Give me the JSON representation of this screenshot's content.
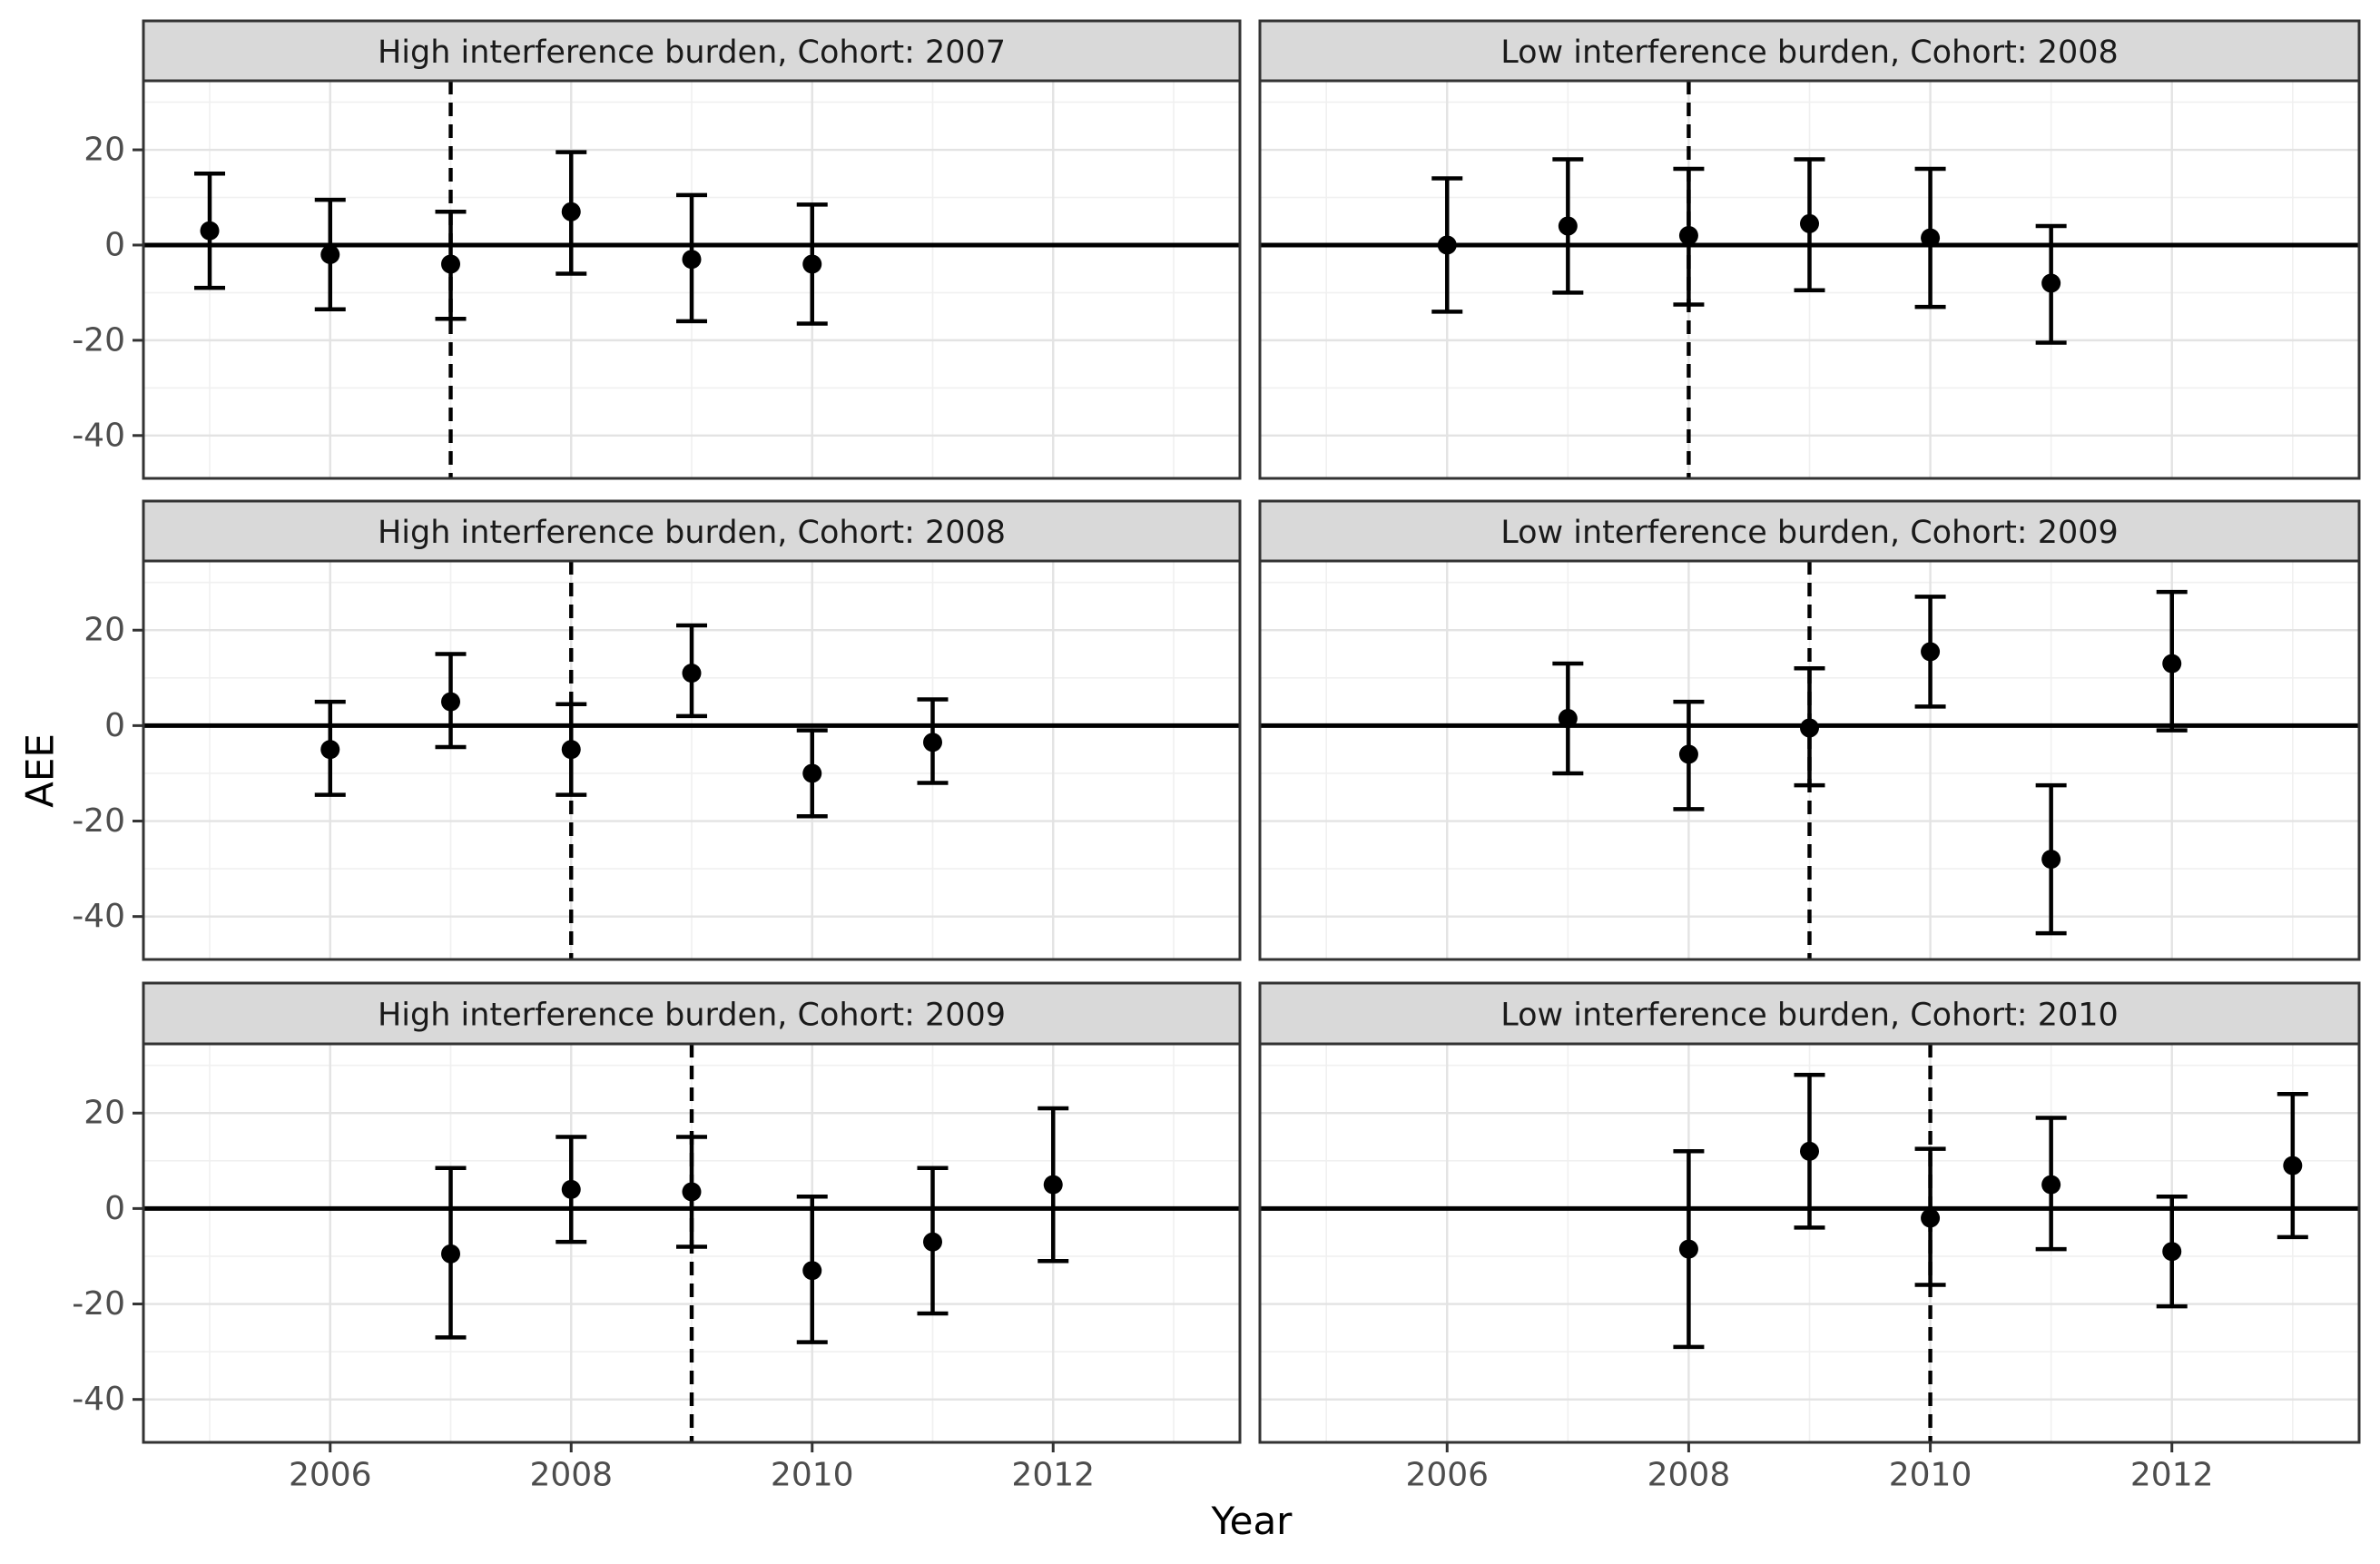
{
  "figure": {
    "x_axis_title": "Year",
    "y_axis_title": "AEE",
    "x_tick_labels": [
      "2006",
      "2008",
      "2010",
      "2012"
    ],
    "y_tick_labels": [
      "20",
      "0",
      "-20",
      "-40"
    ],
    "colors": {
      "background": "#FFFFFF",
      "strip_bg": "#D9D9D9",
      "strip_border": "#333333",
      "strip_text": "#1A1A1A",
      "panel_border": "#333333",
      "grid_major": "#E3E3E3",
      "grid_minor": "#F0F0F0",
      "data": "#000000",
      "tick_mark": "#333333",
      "tick_label": "#4D4D4D",
      "axis_title": "#000000"
    }
  },
  "chart_data": {
    "type": "scatter",
    "subtype": "pointrange-errorbar-facets",
    "xlabel": "Year",
    "ylabel": "AEE",
    "x_ticks": [
      2006,
      2008,
      2010,
      2012
    ],
    "y_ticks": [
      20,
      0,
      -20,
      -40
    ],
    "x_minor": [
      2005,
      2007,
      2009,
      2011,
      2013
    ],
    "y_minor": [
      30,
      10,
      -10,
      -30
    ],
    "xlim": [
      2004.45,
      2013.55
    ],
    "ylim": [
      -49,
      34.5
    ],
    "grid": "major+minor",
    "legend": "none",
    "hline_y": 0,
    "panels": [
      {
        "title": "High interference burden, Cohort: 2007",
        "group": "High interference burden",
        "cohort": 2007,
        "vline_x": 2007,
        "row": 0,
        "col": 0,
        "points": [
          {
            "year": 2005,
            "estimate": 3,
            "ci_low": -9,
            "ci_high": 15
          },
          {
            "year": 2006,
            "estimate": -2,
            "ci_low": -13.5,
            "ci_high": 9.5
          },
          {
            "year": 2007,
            "estimate": -4,
            "ci_low": -15.5,
            "ci_high": 7
          },
          {
            "year": 2008,
            "estimate": 7,
            "ci_low": -6,
            "ci_high": 19.5
          },
          {
            "year": 2009,
            "estimate": -3,
            "ci_low": -16,
            "ci_high": 10.5
          },
          {
            "year": 2010,
            "estimate": -4,
            "ci_low": -16.5,
            "ci_high": 8.5
          }
        ]
      },
      {
        "title": "Low interference burden, Cohort: 2008",
        "group": "Low interference burden",
        "cohort": 2008,
        "vline_x": 2008,
        "row": 0,
        "col": 1,
        "points": [
          {
            "year": 2006,
            "estimate": 0,
            "ci_low": -14,
            "ci_high": 14
          },
          {
            "year": 2007,
            "estimate": 4,
            "ci_low": -10,
            "ci_high": 18
          },
          {
            "year": 2008,
            "estimate": 2,
            "ci_low": -12.5,
            "ci_high": 16
          },
          {
            "year": 2009,
            "estimate": 4.5,
            "ci_low": -9.5,
            "ci_high": 18
          },
          {
            "year": 2010,
            "estimate": 1.5,
            "ci_low": -13,
            "ci_high": 16
          },
          {
            "year": 2011,
            "estimate": -8,
            "ci_low": -20.5,
            "ci_high": 4
          }
        ]
      },
      {
        "title": "High interference burden, Cohort: 2008",
        "group": "High interference burden",
        "cohort": 2008,
        "vline_x": 2008,
        "row": 1,
        "col": 0,
        "points": [
          {
            "year": 2006,
            "estimate": -5,
            "ci_low": -14.5,
            "ci_high": 5
          },
          {
            "year": 2007,
            "estimate": 5,
            "ci_low": -4.5,
            "ci_high": 15
          },
          {
            "year": 2008,
            "estimate": -5,
            "ci_low": -14.5,
            "ci_high": 4.5
          },
          {
            "year": 2009,
            "estimate": 11,
            "ci_low": 2,
            "ci_high": 21
          },
          {
            "year": 2010,
            "estimate": -10,
            "ci_low": -19,
            "ci_high": -1
          },
          {
            "year": 2011,
            "estimate": -3.5,
            "ci_low": -12,
            "ci_high": 5.5
          }
        ]
      },
      {
        "title": "Low interference burden, Cohort: 2009",
        "group": "Low interference burden",
        "cohort": 2009,
        "vline_x": 2009,
        "row": 1,
        "col": 1,
        "points": [
          {
            "year": 2007,
            "estimate": 1.5,
            "ci_low": -10,
            "ci_high": 13
          },
          {
            "year": 2008,
            "estimate": -6,
            "ci_low": -17.5,
            "ci_high": 5
          },
          {
            "year": 2009,
            "estimate": -0.5,
            "ci_low": -12.5,
            "ci_high": 12
          },
          {
            "year": 2010,
            "estimate": 15.5,
            "ci_low": 4,
            "ci_high": 27
          },
          {
            "year": 2011,
            "estimate": -28,
            "ci_low": -43.5,
            "ci_high": -12.5
          },
          {
            "year": 2012,
            "estimate": 13,
            "ci_low": -1,
            "ci_high": 28
          }
        ]
      },
      {
        "title": "High interference burden, Cohort: 2009",
        "group": "High interference burden",
        "cohort": 2009,
        "vline_x": 2009,
        "row": 2,
        "col": 0,
        "points": [
          {
            "year": 2007,
            "estimate": -9.5,
            "ci_low": -27,
            "ci_high": 8.5
          },
          {
            "year": 2008,
            "estimate": 4,
            "ci_low": -7,
            "ci_high": 15
          },
          {
            "year": 2009,
            "estimate": 3.5,
            "ci_low": -8,
            "ci_high": 15
          },
          {
            "year": 2010,
            "estimate": -13,
            "ci_low": -28,
            "ci_high": 2.5
          },
          {
            "year": 2011,
            "estimate": -7,
            "ci_low": -22,
            "ci_high": 8.5
          },
          {
            "year": 2012,
            "estimate": 5,
            "ci_low": -11,
            "ci_high": 21
          }
        ]
      },
      {
        "title": "Low interference burden, Cohort: 2010",
        "group": "Low interference burden",
        "cohort": 2010,
        "vline_x": 2010,
        "row": 2,
        "col": 1,
        "points": [
          {
            "year": 2008,
            "estimate": -8.5,
            "ci_low": -29,
            "ci_high": 12
          },
          {
            "year": 2009,
            "estimate": 12,
            "ci_low": -4,
            "ci_high": 28
          },
          {
            "year": 2010,
            "estimate": -2,
            "ci_low": -16,
            "ci_high": 12.5
          },
          {
            "year": 2011,
            "estimate": 5,
            "ci_low": -8.5,
            "ci_high": 19
          },
          {
            "year": 2012,
            "estimate": -9,
            "ci_low": -20.5,
            "ci_high": 2.5
          },
          {
            "year": 2013,
            "estimate": 9,
            "ci_low": -6,
            "ci_high": 24
          }
        ]
      }
    ]
  }
}
